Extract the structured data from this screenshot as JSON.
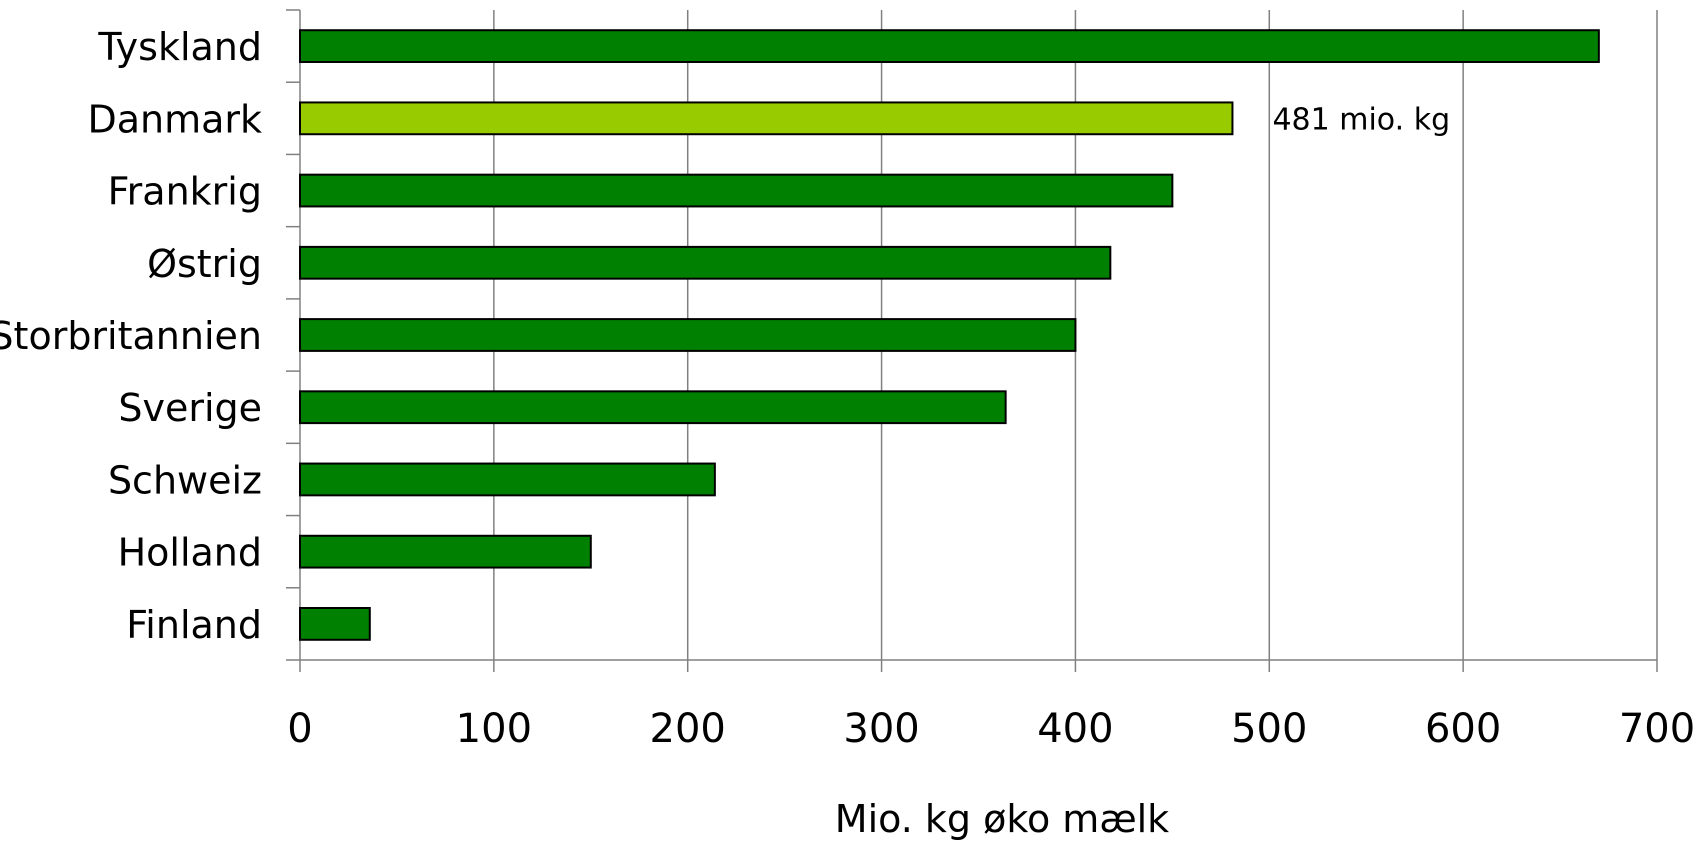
{
  "chart_data": {
    "type": "bar",
    "orientation": "horizontal",
    "categories": [
      "Tyskland",
      "Danmark",
      "Frankrig",
      "Østrig",
      "Storbritannien",
      "Sverige",
      "Schweiz",
      "Holland",
      "Finland"
    ],
    "values": [
      670,
      481,
      450,
      418,
      400,
      364,
      214,
      150,
      36
    ],
    "xlabel": "Mio. kg øko mælk",
    "xlim": [
      0,
      700
    ],
    "xticks": [
      "0",
      "100",
      "200",
      "300",
      "400",
      "500",
      "600",
      "700"
    ],
    "grid": "vertical",
    "highlight": {
      "category": "Danmark",
      "label": "481 mio. kg"
    },
    "colors": {
      "bar": "#008000",
      "highlight": "#99cc00",
      "outline": "#000000",
      "grid": "#808080"
    }
  }
}
